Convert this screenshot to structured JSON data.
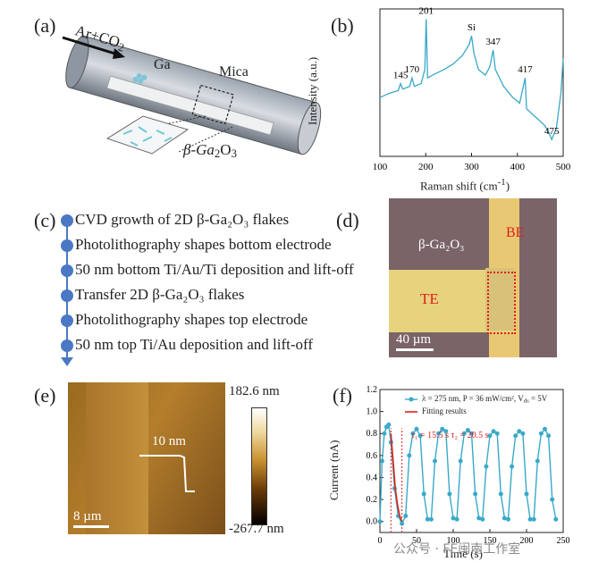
{
  "panels": {
    "a": {
      "label": "(a)",
      "gas": "Ar+CO",
      "gas_sub": "2",
      "ga_label": "Ga",
      "mica_label": "Mica",
      "product_label": "β-Ga",
      "product_sub1": "2",
      "product_mid": "O",
      "product_sub2": "3"
    },
    "b": {
      "label": "(b)",
      "peaks": [
        "145",
        "170",
        "201",
        "Si",
        "347",
        "417",
        "475"
      ],
      "xlabel": "Raman shift (cm",
      "xlabel_sup": "-1",
      "xlabel_end": ")",
      "ylabel": "Intensity (a.u.)",
      "xticks": [
        "100",
        "200",
        "300",
        "400",
        "500"
      ]
    },
    "c": {
      "label": "(c)",
      "steps": [
        "CVD growth of 2D β-Ga₂O₃ flakes",
        "Photolithography shapes bottom electrode",
        "50 nm bottom Ti/Au/Ti deposition and lift-off",
        "Transfer 2D β-Ga₂O₃ flakes",
        "Photolithography shapes top electrode",
        "50 nm top Ti/Au deposition and lift-off"
      ]
    },
    "d": {
      "label": "(d)",
      "flake": "β-Ga₂O₃",
      "be": "BE",
      "te": "TE",
      "scale": "40 µm"
    },
    "e": {
      "label": "(e)",
      "step_height": "10 nm",
      "scale": "8 µm",
      "cbar_max": "182.6 nm",
      "cbar_min": "-267.7 nm"
    },
    "f": {
      "label": "(f)",
      "legend_data": "λ = 275 nm, P = 36 mW/cm², V",
      "legend_data_sub": "ds",
      "legend_data_end": " = 5V",
      "legend_fit": "Fitting results",
      "tau_text": "τ₁ = 15.5 s  τ₂ = 20.5 s",
      "xlabel": "Time (s)",
      "ylabel": "Current (nA)",
      "xticks": [
        "0",
        "50",
        "100",
        "150",
        "200",
        "250"
      ],
      "yticks": [
        "0.0",
        "0.2",
        "0.4",
        "0.6",
        "0.8",
        "1.0",
        "1.2"
      ]
    }
  },
  "watermark": "公众号 · FE闽南工作室",
  "chart_data": [
    {
      "type": "line",
      "xlabel": "Raman shift (cm-1)",
      "ylabel": "Intensity (a.u.)",
      "xlim": [
        100,
        500
      ],
      "annotations": [
        "145",
        "170",
        "201",
        "Si",
        "347",
        "417",
        "475"
      ],
      "x": [
        100,
        120,
        140,
        145,
        150,
        165,
        170,
        175,
        190,
        198,
        201,
        204,
        215,
        240,
        260,
        280,
        295,
        300,
        305,
        315,
        330,
        340,
        347,
        352,
        370,
        390,
        405,
        417,
        420,
        440,
        460,
        470,
        475,
        485,
        495,
        500
      ],
      "y": [
        0.42,
        0.45,
        0.47,
        0.52,
        0.48,
        0.5,
        0.56,
        0.5,
        0.52,
        0.62,
        0.98,
        0.56,
        0.58,
        0.62,
        0.66,
        0.72,
        0.8,
        0.86,
        0.74,
        0.62,
        0.58,
        0.64,
        0.76,
        0.62,
        0.5,
        0.42,
        0.38,
        0.56,
        0.34,
        0.28,
        0.22,
        0.16,
        0.12,
        0.2,
        0.45,
        0.7
      ],
      "grid": false
    },
    {
      "type": "line",
      "xlabel": "Time (s)",
      "ylabel": "Current (nA)",
      "xlim": [
        0,
        250
      ],
      "ylim": [
        -0.1,
        1.2
      ],
      "series": [
        {
          "name": "λ = 275 nm, P = 36 mW/cm², Vds = 5V",
          "x": [
            0,
            3,
            6,
            9,
            12,
            15,
            20,
            25,
            30,
            35,
            40,
            45,
            50,
            55,
            60,
            65,
            70,
            75,
            80,
            85,
            90,
            95,
            100,
            105,
            110,
            115,
            120,
            125,
            130,
            135,
            140,
            145,
            150,
            155,
            160,
            165,
            170,
            175,
            180,
            185,
            190,
            195,
            200,
            205,
            210,
            215,
            220,
            225,
            230,
            235,
            240
          ],
          "y": [
            0.0,
            0.55,
            0.8,
            0.86,
            0.88,
            0.72,
            0.3,
            0.05,
            -0.02,
            0.05,
            0.6,
            0.8,
            0.84,
            0.78,
            0.25,
            0.02,
            0.02,
            0.55,
            0.8,
            0.84,
            0.82,
            0.25,
            0.03,
            0.02,
            0.55,
            0.8,
            0.83,
            0.8,
            0.25,
            0.03,
            0.02,
            0.5,
            0.78,
            0.82,
            0.8,
            0.25,
            0.03,
            0.02,
            0.5,
            0.78,
            0.82,
            0.8,
            0.25,
            0.02,
            0.02,
            0.55,
            0.8,
            0.84,
            0.78,
            0.2,
            0.02
          ]
        },
        {
          "name": "Fitting results",
          "x": [
            15,
            18,
            21,
            24,
            27,
            30
          ],
          "y": [
            0.8,
            0.55,
            0.3,
            0.15,
            0.05,
            0.0
          ]
        }
      ],
      "annotations": [
        "τ₁ = 15.5 s  τ₂ = 20.5 s"
      ]
    }
  ]
}
